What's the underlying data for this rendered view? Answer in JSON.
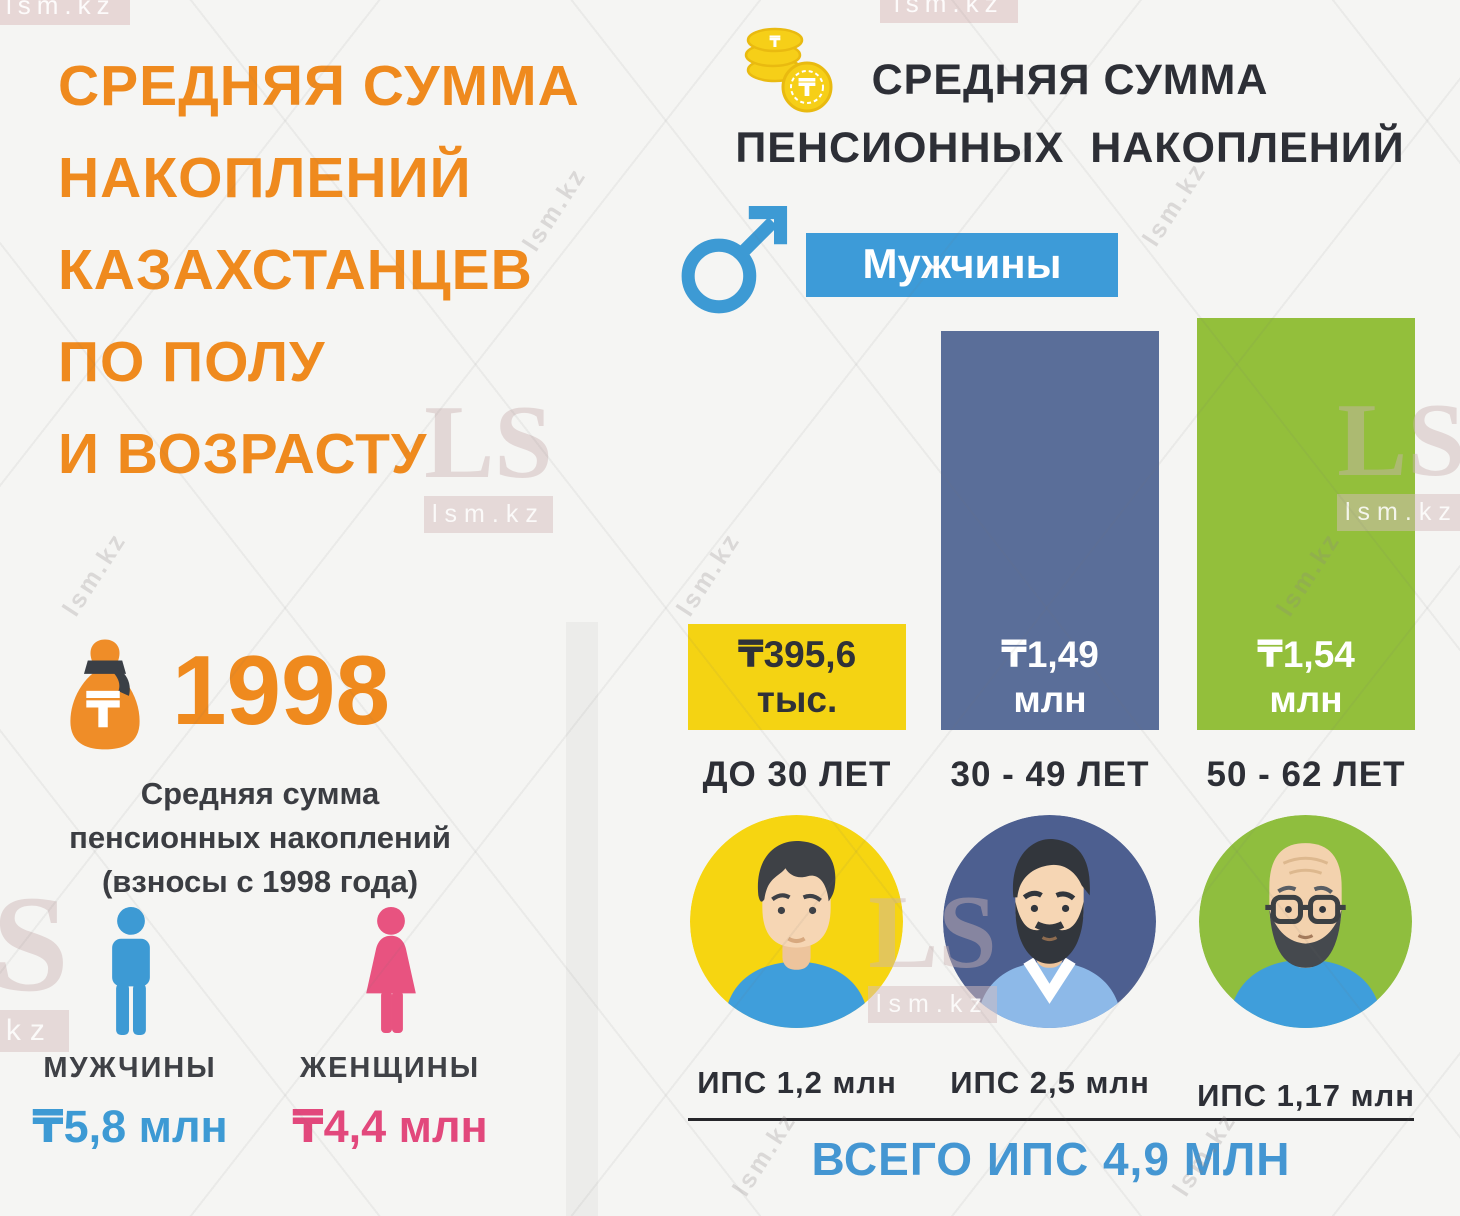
{
  "page": {
    "background": "#f5f5f3"
  },
  "left_panel": {
    "title_lines": [
      "СРЕДНЯЯ СУММА",
      "НАКОПЛЕНИЙ",
      "КАЗАХСТАНЦЕВ",
      "ПО ПОЛУ",
      "И ВОЗРАСТУ"
    ],
    "title_color": "#ef8a1e",
    "year": "1998",
    "year_caption_lines": [
      "Средняя сумма",
      "пенсионных накоплений",
      "(взносы с 1998 года)"
    ],
    "men": {
      "label": "МУЖЧИНЫ",
      "value": "₸5,8 млн",
      "color": "#3d9ad4"
    },
    "women": {
      "label": "ЖЕНЩИНЫ",
      "value": "₸4,4 млн",
      "color": "#e2487c"
    }
  },
  "right_panel": {
    "header_lines": [
      "СРЕДНЯЯ СУММА",
      "ПЕНСИОННЫХ  НАКОПЛЕНИЙ"
    ],
    "gender_badge": "Мужчины",
    "badge_color": "#3d9bd8"
  },
  "chart_data": {
    "type": "bar",
    "title": "Средняя сумма пенсионных накоплений — мужчины, по возрасту",
    "categories": [
      "ДО 30 ЛЕТ",
      "30 - 49 ЛЕТ",
      "50 - 62 ЛЕТ"
    ],
    "values_kzt": [
      395600,
      1490000,
      1540000
    ],
    "value_labels": [
      [
        "₸395,6",
        "тыс."
      ],
      [
        "₸1,49",
        "млн"
      ],
      [
        "₸1,54",
        "млн"
      ]
    ],
    "bar_colors": [
      "#f4d313",
      "#5a6e99",
      "#93bf3b"
    ],
    "value_label_colors": [
      "#2f3138",
      "#ffffff",
      "#ffffff"
    ],
    "avatar_bg_colors": [
      "#f6d511",
      "#4d5f90",
      "#8fbe3e"
    ],
    "ips_labels": [
      "ИПС 1,2 млн",
      "ИПС 2,5 млн",
      "ИПС 1,17 млн"
    ],
    "ips_values_mln": [
      1.2,
      2.5,
      1.17
    ],
    "total_label": "ВСЕГО ИПС 4,9 МЛН",
    "total_value_mln": 4.9,
    "ylim_kzt": [
      0,
      1540000
    ],
    "grid": false,
    "legend": false
  },
  "watermark": {
    "ls": "LS",
    "box": "lsm.kz",
    "small": "lsm.kz"
  }
}
